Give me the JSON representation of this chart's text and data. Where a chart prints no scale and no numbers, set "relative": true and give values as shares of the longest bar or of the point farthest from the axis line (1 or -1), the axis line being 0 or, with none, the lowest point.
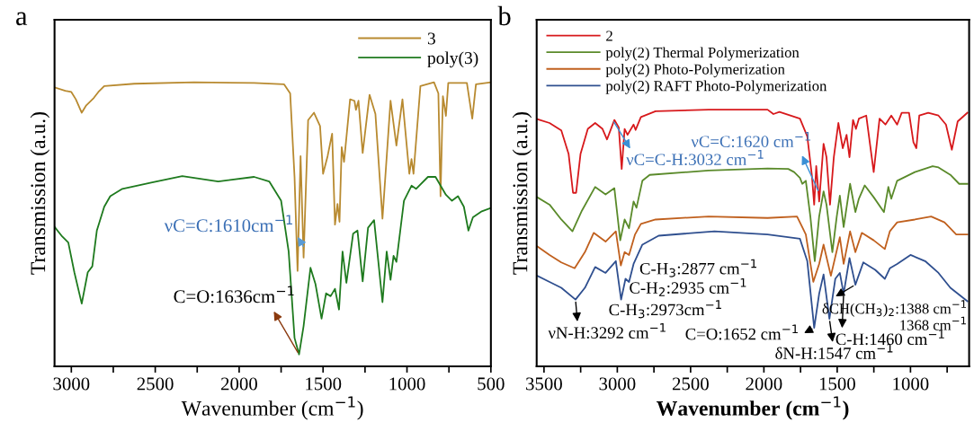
{
  "chart_data": [
    {
      "type": "line",
      "title": "a",
      "xlabel": "Wavenumber (cm$^{−1}$)",
      "ylabel": "Transmission (a.u.)",
      "relative": true,
      "legend": "top right",
      "tick_labels": "x",
      "xlim": [
        3100,
        500
      ],
      "xticks": [
        3000,
        {
          "value": 2750,
          "label": null
        },
        2500,
        {
          "value": 2250,
          "label": null
        },
        2000,
        {
          "value": 1750,
          "label": null
        },
        1500,
        {
          "value": 1250,
          "label": null
        },
        1000,
        {
          "value": 750,
          "label": null
        },
        500
      ],
      "series": [
        {
          "name": "3",
          "color": "#b88a30",
          "x": [
            3100,
            3036,
            3000,
            2973,
            2938,
            2911,
            2866,
            2839,
            2804,
            2625,
            2268,
            1911,
            1732,
            1696,
            1670,
            1652,
            1634,
            1616,
            1589,
            1554,
            1518,
            1500,
            1473,
            1446,
            1429,
            1414,
            1402,
            1389,
            1375,
            1339,
            1313,
            1304,
            1289,
            1264,
            1223,
            1188,
            1146,
            1098,
            1063,
            1027,
            986,
            973,
            961,
            920,
            839,
            813,
            800,
            786,
            768,
            754,
            643,
            611,
            589,
            504
          ],
          "values": [
            0.982,
            0.97,
            0.966,
            0.94,
            0.893,
            0.919,
            0.945,
            0.966,
            0.987,
            0.995,
            1.0,
            0.998,
            0.993,
            0.961,
            0.667,
            0.336,
            0.74,
            0.383,
            0.867,
            0.893,
            0.846,
            0.678,
            0.74,
            0.819,
            0.499,
            0.572,
            0.509,
            0.772,
            0.72,
            0.94,
            0.935,
            0.903,
            0.935,
            0.751,
            0.956,
            0.888,
            0.52,
            0.935,
            0.777,
            0.94,
            0.678,
            0.73,
            0.678,
            0.987,
            1.0,
            0.961,
            0.599,
            0.951,
            0.882,
            0.998,
            0.998,
            0.872,
            0.993,
            1.0
          ]
        },
        {
          "name": "poly(3)",
          "color": "#1e7a1e",
          "x": [
            3100,
            3054,
            3018,
            2982,
            2938,
            2902,
            2875,
            2848,
            2804,
            2768,
            2696,
            2518,
            2339,
            2125,
            1911,
            1821,
            1750,
            1705,
            1670,
            1643,
            1616,
            1575,
            1545,
            1509,
            1482,
            1455,
            1429,
            1405,
            1384,
            1361,
            1321,
            1295,
            1264,
            1232,
            1196,
            1146,
            1121,
            1098,
            1080,
            1063,
            1018,
            973,
            946,
            875,
            830,
            768,
            732,
            696,
            661,
            634,
            607,
            554,
            504
          ],
          "values": [
            0.491,
            0.457,
            0.436,
            0.331,
            0.221,
            0.331,
            0.352,
            0.478,
            0.562,
            0.599,
            0.625,
            0.648,
            0.67,
            0.651,
            0.667,
            0.651,
            0.583,
            0.404,
            0.1,
            0.042,
            0.142,
            0.347,
            0.289,
            0.168,
            0.257,
            0.247,
            0.273,
            0.2,
            0.404,
            0.294,
            0.467,
            0.478,
            0.299,
            0.488,
            0.515,
            0.226,
            0.404,
            0.305,
            0.389,
            0.368,
            0.583,
            0.636,
            0.625,
            0.667,
            0.667,
            0.604,
            0.583,
            0.599,
            0.562,
            0.478,
            0.525,
            0.546,
            0.557
          ]
        }
      ],
      "annotations": [
        {
          "text": "νC=C:1610cm$^{−1}$",
          "x": 1610,
          "y": 0.415
        },
        {
          "text": "C=O:1636cm$^{−1}$",
          "x": 1643,
          "y": 0.042
        }
      ]
    },
    {
      "type": "line",
      "title": "b",
      "xlabel": "Wavenumber (cm$^{−1}$)",
      "ylabel": "Transmission (a.u.)",
      "relative": true,
      "legend": "top left",
      "tick_labels": "x",
      "xlim": [
        3550,
        600
      ],
      "xticks": [
        3500,
        {
          "value": 3250,
          "label": null
        },
        3000,
        {
          "value": 2750,
          "label": null
        },
        2500,
        {
          "value": 2250,
          "label": null
        },
        2000,
        {
          "value": 1750,
          "label": null
        },
        1500,
        {
          "value": 1250,
          "label": null
        },
        1000,
        {
          "value": 750,
          "label": null
        }
      ],
      "series": [
        {
          "name": "2",
          "color": "#d7191c",
          "x": [
            3547,
            3462,
            3382,
            3332,
            3302,
            3281,
            3251,
            3201,
            3151,
            3101,
            3070,
            3020,
            2990,
            2970,
            2950,
            2930,
            2889,
            2875,
            2839,
            2739,
            2377,
            1975,
            1935,
            1894,
            1754,
            1704,
            1673,
            1657,
            1643,
            1623,
            1593,
            1573,
            1549,
            1523,
            1492,
            1462,
            1436,
            1416,
            1392,
            1372,
            1352,
            1302,
            1251,
            1211,
            1171,
            1131,
            1091,
            1060,
            1010,
            980,
            960,
            940,
            879,
            809,
            758,
            718,
            678,
            612
          ],
          "values": [
            0.963,
            0.948,
            0.919,
            0.827,
            0.676,
            0.676,
            0.827,
            0.925,
            0.948,
            0.925,
            0.884,
            0.96,
            0.931,
            0.769,
            0.925,
            0.902,
            0.942,
            0.921,
            0.971,
            0.994,
            1.0,
            1.0,
            0.983,
            0.991,
            0.965,
            0.896,
            0.746,
            0.63,
            0.78,
            0.642,
            0.867,
            0.815,
            0.63,
            0.815,
            0.948,
            0.85,
            0.902,
            0.815,
            0.96,
            0.925,
            0.965,
            0.977,
            0.757,
            0.965,
            0.942,
            0.977,
            0.942,
            0.988,
            0.988,
            0.873,
            0.85,
            0.977,
            0.988,
            0.977,
            0.942,
            0.844,
            0.954,
            0.988
          ]
        },
        {
          "name": "poly(2) Thermal Polymerization",
          "color": "#5a8a2a",
          "x": [
            3547,
            3462,
            3382,
            3306,
            3241,
            3151,
            3080,
            3020,
            2980,
            2950,
            2920,
            2889,
            2869,
            2829,
            2779,
            2377,
            1975,
            1834,
            1794,
            1754,
            1738,
            1714,
            1683,
            1653,
            1623,
            1593,
            1573,
            1533,
            1503,
            1482,
            1456,
            1412,
            1376,
            1352,
            1312,
            1251,
            1181,
            1151,
            1131,
            1091,
            970,
            849,
            809,
            728,
            668,
            612
          ],
          "values": [
            0.659,
            0.63,
            0.572,
            0.526,
            0.607,
            0.699,
            0.67,
            0.694,
            0.491,
            0.572,
            0.538,
            0.642,
            0.618,
            0.723,
            0.746,
            0.763,
            0.771,
            0.769,
            0.757,
            0.734,
            0.711,
            0.723,
            0.584,
            0.41,
            0.584,
            0.682,
            0.63,
            0.445,
            0.584,
            0.665,
            0.543,
            0.711,
            0.601,
            0.653,
            0.705,
            0.659,
            0.601,
            0.699,
            0.653,
            0.723,
            0.757,
            0.78,
            0.775,
            0.746,
            0.711,
            0.711
          ]
        },
        {
          "name": "poly(2) Photo-Polymerization",
          "color": "#c0601e",
          "x": [
            3547,
            3462,
            3382,
            3291,
            3221,
            3161,
            3080,
            3010,
            2976,
            2950,
            2920,
            2879,
            2839,
            2739,
            2377,
            1975,
            1774,
            1714,
            1663,
            1623,
            1593,
            1543,
            1482,
            1456,
            1412,
            1376,
            1332,
            1251,
            1175,
            1141,
            1091,
            970,
            859,
            768,
            688,
            612
          ],
          "values": [
            0.468,
            0.434,
            0.405,
            0.382,
            0.445,
            0.52,
            0.486,
            0.526,
            0.393,
            0.445,
            0.434,
            0.514,
            0.555,
            0.572,
            0.584,
            0.578,
            0.584,
            0.514,
            0.329,
            0.399,
            0.474,
            0.353,
            0.503,
            0.399,
            0.526,
            0.445,
            0.52,
            0.491,
            0.457,
            0.526,
            0.561,
            0.572,
            0.584,
            0.561,
            0.514,
            0.514
          ]
        },
        {
          "name": "poly(2) RAFT Photo-Polymerization",
          "color": "#2f4f8f",
          "x": [
            3547,
            3462,
            3382,
            3285,
            3221,
            3151,
            3080,
            3010,
            2974,
            2944,
            2920,
            2889,
            2829,
            2718,
            2337,
            1975,
            1754,
            1704,
            1657,
            1623,
            1593,
            1553,
            1513,
            1482,
            1456,
            1416,
            1376,
            1322,
            1241,
            1175,
            1141,
            1091,
            1000,
            900,
            809,
            728,
            612
          ],
          "values": [
            0.353,
            0.329,
            0.306,
            0.26,
            0.306,
            0.387,
            0.364,
            0.41,
            0.26,
            0.341,
            0.329,
            0.399,
            0.474,
            0.509,
            0.526,
            0.514,
            0.497,
            0.41,
            0.15,
            0.283,
            0.358,
            0.185,
            0.341,
            0.364,
            0.283,
            0.422,
            0.318,
            0.405,
            0.376,
            0.341,
            0.382,
            0.399,
            0.434,
            0.41,
            0.364,
            0.306,
            0.254
          ]
        }
      ],
      "annotations": [
        {
          "text": "νC=C-H:3032 cm$^{−1}$",
          "x": 3032,
          "y": 0.96
        },
        {
          "text": "νC=C:1620 cm$^{−1}$",
          "x": 1623,
          "y": 0.676
        },
        {
          "text": "C-H$_{3}$:2877 cm$^{−1}$",
          "x": 2877,
          "y": 0.399
        },
        {
          "text": "C-H$_{2}$:2935 cm$^{−1}$",
          "x": 2935,
          "y": 0.341
        },
        {
          "text": "C-H$_{3}$:2973cm$^{−1}$",
          "x": 2973,
          "y": 0.26
        },
        {
          "text": "νN-H:3292 cm$^{−1}$",
          "x": 3285,
          "y": 0.26
        },
        {
          "text": "C=O:1652 cm$^{−1}$",
          "x": 1657,
          "y": 0.15
        },
        {
          "text": "δN-H:1547 cm$^{−1}$",
          "x": 1553,
          "y": 0.185
        },
        {
          "text": "C-H:1460 cm$^{−1}$",
          "x": 1456,
          "y": 0.283
        },
        {
          "text": "δCH(CH$_{3}$)$_{2}$:1388 cm$^{−1}$",
          "x": 1376,
          "y": 0.318
        },
        "1368 cm$^{−1}$"
      ]
    }
  ]
}
